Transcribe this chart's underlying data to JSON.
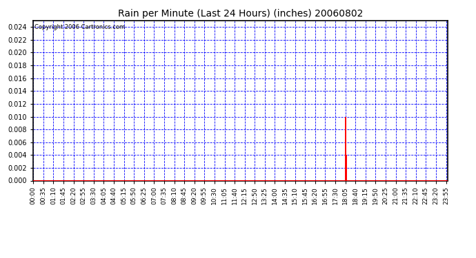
{
  "title": "Rain per Minute (Last 24 Hours) (inches) 20060802",
  "copyright_text": "Copyright 2006 Cartronics.com",
  "background_color": "#ffffff",
  "plot_bg_color": "#ffffff",
  "bar_color": "#ff0000",
  "baseline_color": "#ff0000",
  "grid_color": "#0000ff",
  "axis_color": "#000000",
  "border_color": "#000000",
  "ylim": [
    0.0,
    0.025
  ],
  "yticks": [
    0.0,
    0.002,
    0.004,
    0.006,
    0.008,
    0.01,
    0.012,
    0.014,
    0.016,
    0.018,
    0.02,
    0.022,
    0.024
  ],
  "total_minutes": 1440,
  "rain_events": [
    {
      "minute": 1085,
      "value": 0.01
    },
    {
      "minute": 1086,
      "value": 0.01
    },
    {
      "minute": 1088,
      "value": 0.004
    },
    {
      "minute": 1089,
      "value": 0.004
    }
  ],
  "tick_interval": 35,
  "title_fontsize": 10,
  "copyright_fontsize": 6,
  "ytick_fontsize": 7,
  "xtick_fontsize": 6.5
}
